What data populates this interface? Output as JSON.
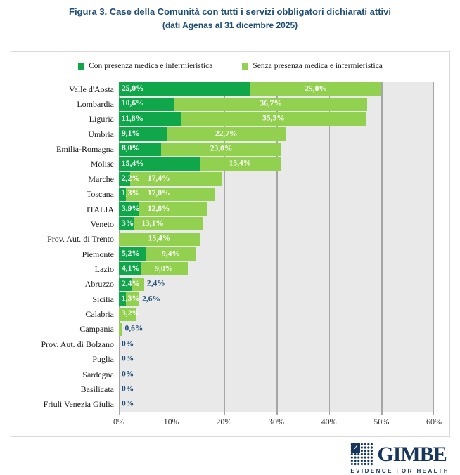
{
  "title": "Figura 3. Case della Comunità con tutti i servizi obbligatori dichiarati attivi",
  "subtitle": "(dati Agenas al 31 dicembre 2025)",
  "legend": {
    "con": "Con presenza medica e infermieristica",
    "senza": "Senza presenza medica e infermieristica"
  },
  "colors": {
    "con_green": "#10A74A",
    "senza_green": "#92D050",
    "label_blue": "#1F4E79",
    "plot_background": "#E9E9E9",
    "gridline": "#A6A6A6",
    "logo_navy": "#17365D"
  },
  "logo": {
    "name": "GIMBE",
    "tagline": "EVIDENCE FOR HEALTH",
    "check_icon": "✓"
  },
  "chart_data": {
    "type": "bar",
    "orientation": "horizontal",
    "stacked": true,
    "title": "Figura 3. Case della Comunità con tutti i servizi obbligatori dichiarati attivi",
    "subtitle": "(dati Agenas al 31 dicembre 2025)",
    "legend_position": "top",
    "series_names": [
      "Con presenza medica e infermieristica",
      "Senza presenza medica e infermieristica"
    ],
    "x_axis": {
      "ticks": [
        "0%",
        "10%",
        "20%",
        "30%",
        "40%",
        "50%",
        "60%"
      ],
      "min": 0,
      "max": 60,
      "grid": true
    },
    "rows": [
      {
        "label": "Valle d'Aosta",
        "con": 25.0,
        "senza": 25.0,
        "con_label": "25,0%",
        "senza_label": "25,0%",
        "senza_mode": "center"
      },
      {
        "label": "Lombardia",
        "con": 10.6,
        "senza": 36.7,
        "con_label": "10,6%",
        "senza_label": "36,7%",
        "senza_mode": "center"
      },
      {
        "label": "Liguria",
        "con": 11.8,
        "senza": 35.3,
        "con_label": "11,8%",
        "senza_label": "35,3%",
        "senza_mode": "center"
      },
      {
        "label": "Umbria",
        "con": 9.1,
        "senza": 22.7,
        "con_label": "9,1%",
        "senza_label": "22,7%",
        "senza_mode": "center"
      },
      {
        "label": "Emilia-Romagna",
        "con": 8.0,
        "senza": 23.0,
        "con_label": "8,0%",
        "senza_label": "23,0%",
        "senza_mode": "center"
      },
      {
        "label": "Molise",
        "con": 15.4,
        "senza": 15.4,
        "con_label": "15,4%",
        "senza_label": "15,4%",
        "senza_mode": "center"
      },
      {
        "label": "Marche",
        "con": 2.2,
        "senza": 17.4,
        "con_label": "2,2%",
        "senza_label": "17,4%",
        "senza_mode": "near"
      },
      {
        "label": "Toscana",
        "con": 1.3,
        "senza": 17.0,
        "con_label": "1,3%",
        "senza_label": "17,0%",
        "senza_mode": "near"
      },
      {
        "label": "ITALIA",
        "con": 3.9,
        "senza": 12.8,
        "con_label": "3,9%",
        "senza_label": "12,8%",
        "senza_mode": "near"
      },
      {
        "label": "Veneto",
        "con": 3.0,
        "senza": 13.1,
        "con_label": "3%",
        "senza_label": "13,1%",
        "senza_mode": "near"
      },
      {
        "label": "Prov. Aut. di Trento",
        "con": 0,
        "senza": 15.4,
        "con_label": "",
        "senza_label": "15,4%",
        "senza_mode": "center"
      },
      {
        "label": "Piemonte",
        "con": 5.2,
        "senza": 9.4,
        "con_label": "5,2%",
        "senza_label": "9,4%",
        "senza_mode": "center"
      },
      {
        "label": "Lazio",
        "con": 4.1,
        "senza": 9.0,
        "con_label": "4,1%",
        "senza_label": "9,0%",
        "senza_mode": "center"
      },
      {
        "label": "Abruzzo",
        "con": 2.4,
        "senza": 2.4,
        "con_label": "2,4%",
        "senza_label": "2,4%",
        "senza_mode": "outside"
      },
      {
        "label": "Sicilia",
        "con": 1.3,
        "senza": 2.6,
        "con_label": "1,3%",
        "senza_label": "2,6%",
        "senza_mode": "outside"
      },
      {
        "label": "Calabria",
        "con": 0,
        "senza": 3.2,
        "con_label": "",
        "senza_label": "3,2%",
        "senza_mode": "near"
      },
      {
        "label": "Campania",
        "con": 0,
        "senza": 0.6,
        "con_label": "",
        "senza_label": "0,6%",
        "senza_mode": "outside"
      },
      {
        "label": "Prov. Aut. di Bolzano",
        "con": 0,
        "senza": 0,
        "con_label": "",
        "senza_label": "0%",
        "senza_mode": "outside"
      },
      {
        "label": "Puglia",
        "con": 0,
        "senza": 0,
        "con_label": "",
        "senza_label": "0%",
        "senza_mode": "outside"
      },
      {
        "label": "Sardegna",
        "con": 0,
        "senza": 0,
        "con_label": "",
        "senza_label": "0%",
        "senza_mode": "outside"
      },
      {
        "label": "Basilicata",
        "con": 0,
        "senza": 0,
        "con_label": "",
        "senza_label": "0%",
        "senza_mode": "outside"
      },
      {
        "label": "Friuli Venezia Giulia",
        "con": 0,
        "senza": 0,
        "con_label": "",
        "senza_label": "0%",
        "senza_mode": "outside"
      }
    ]
  }
}
